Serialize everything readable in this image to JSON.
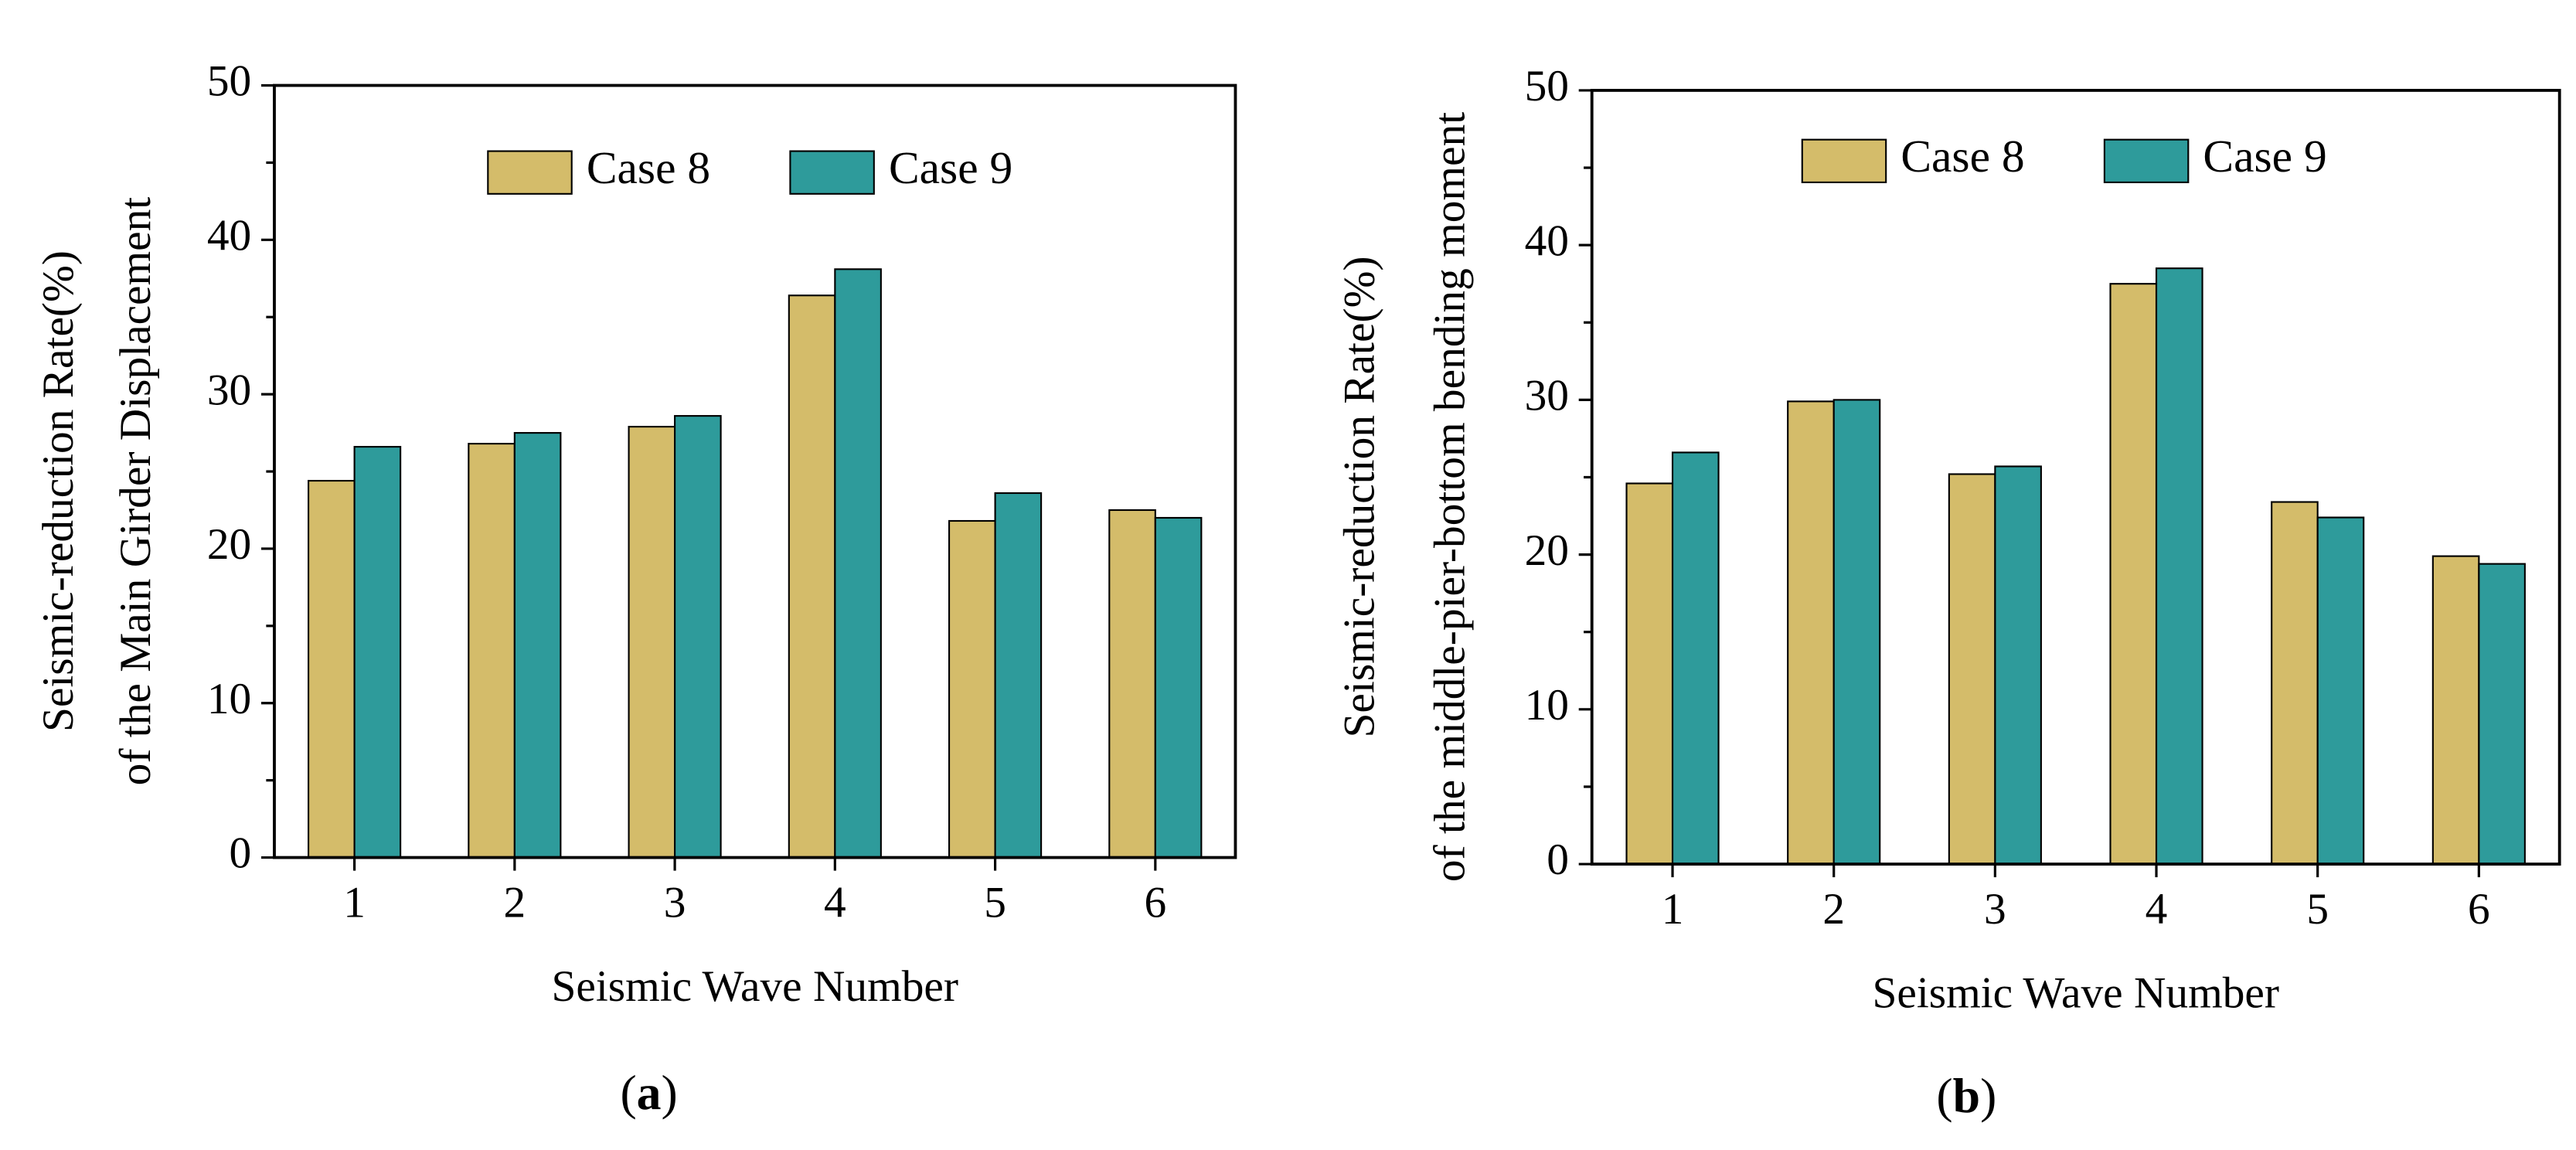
{
  "chart_data": [
    {
      "type": "bar",
      "caption": "(a)",
      "xlabel": "Seismic Wave Number",
      "ylabel": [
        "Seismic-reduction Rate(%)",
        "of the Main Girder Displacement"
      ],
      "categories": [
        "1",
        "2",
        "3",
        "4",
        "5",
        "6"
      ],
      "series": [
        {
          "name": "Case 8",
          "color": "#d4bc6a",
          "values": [
            24.4,
            26.8,
            27.9,
            36.4,
            21.8,
            22.5
          ]
        },
        {
          "name": "Case 9",
          "color": "#2e9b9b",
          "values": [
            26.6,
            27.5,
            28.6,
            38.1,
            23.6,
            22.0
          ]
        }
      ],
      "ylim": [
        0,
        50
      ],
      "yticks": [
        0,
        10,
        20,
        30,
        40,
        50
      ]
    },
    {
      "type": "bar",
      "caption": "(b)",
      "xlabel": "Seismic Wave Number",
      "ylabel": [
        "Seismic-reduction Rate(%)",
        "of the middle-pier-bottom bending moment"
      ],
      "categories": [
        "1",
        "2",
        "3",
        "4",
        "5",
        "6"
      ],
      "series": [
        {
          "name": "Case 8",
          "color": "#d4bc6a",
          "values": [
            24.6,
            29.9,
            25.2,
            37.5,
            23.4,
            19.9
          ]
        },
        {
          "name": "Case 9",
          "color": "#2e9b9b",
          "values": [
            26.6,
            30.0,
            25.7,
            38.5,
            22.4,
            19.4
          ]
        }
      ],
      "ylim": [
        0,
        50
      ],
      "yticks": [
        0,
        10,
        20,
        30,
        40,
        50
      ]
    }
  ]
}
